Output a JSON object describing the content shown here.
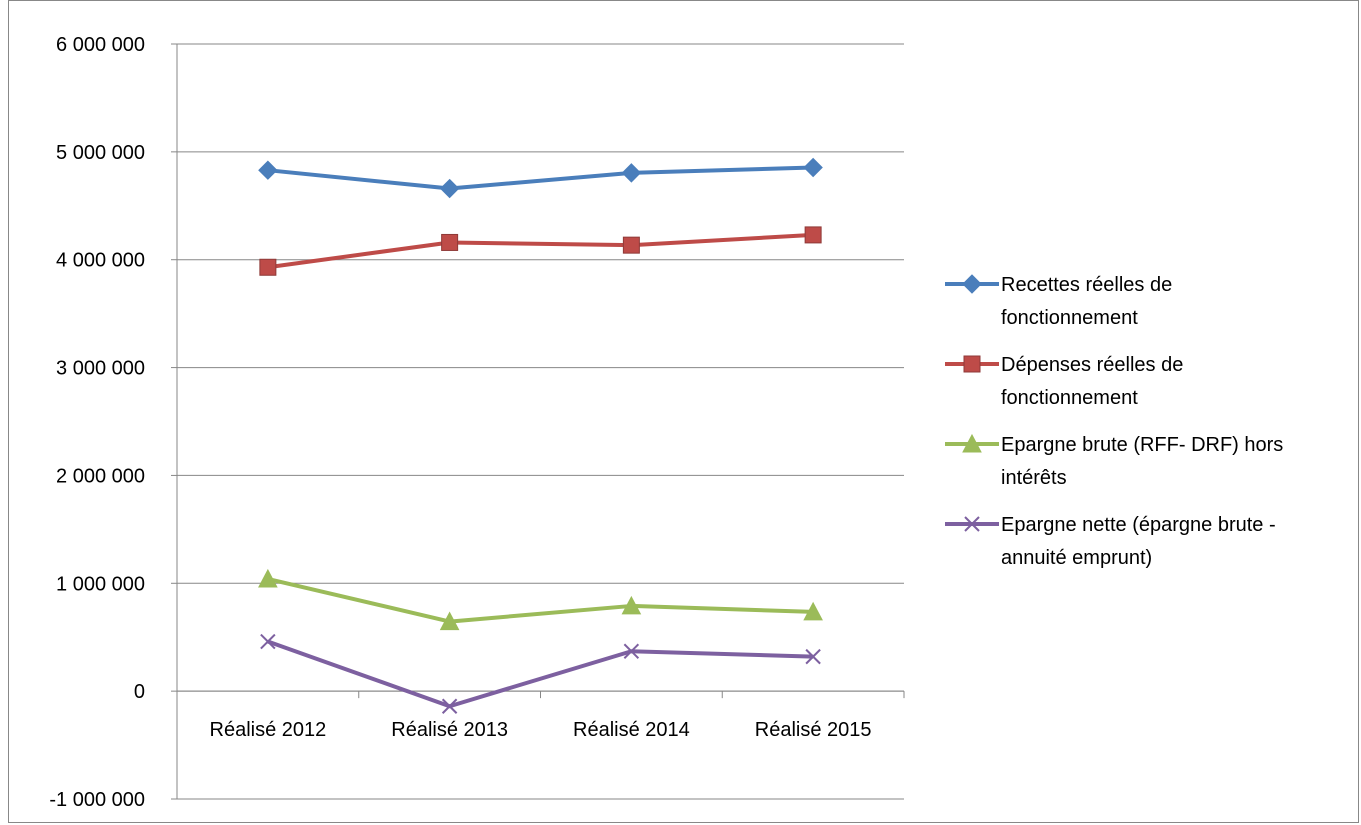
{
  "chart_data": {
    "type": "line",
    "title": "",
    "xlabel": "",
    "ylabel": "",
    "categories": [
      "Réalisé 2012",
      "Réalisé 2013",
      "Réalisé 2014",
      "Réalisé 2015"
    ],
    "ylim": [
      -1000000,
      6000000
    ],
    "yticks": [
      -1000000,
      0,
      1000000,
      2000000,
      3000000,
      4000000,
      5000000,
      6000000
    ],
    "ytick_labels": [
      "-1 000 000",
      "0",
      "1 000 000",
      "2 000 000",
      "3 000 000",
      "4 000 000",
      "5 000 000",
      "6 000 000"
    ],
    "grid": "horizontal",
    "legend_position": "right",
    "series": [
      {
        "name_lines": [
          "Recettes réelles de",
          "fonctionnement"
        ],
        "name": "Recettes réelles de fonctionnement",
        "color": "#4A7EBB",
        "marker": "diamond",
        "values": [
          4830000,
          4660000,
          4805000,
          4855000
        ]
      },
      {
        "name_lines": [
          "Dépenses réelles de",
          "fonctionnement"
        ],
        "name": "Dépenses réelles de fonctionnement",
        "color": "#BE4B48",
        "marker": "square",
        "values": [
          3930000,
          4160000,
          4135000,
          4230000
        ]
      },
      {
        "name_lines": [
          "Epargne brute (RFF- DRF) hors",
          "intérêts"
        ],
        "name": "Epargne brute (RFF- DRF) hors intérêts",
        "color": "#9BBB59",
        "marker": "triangle",
        "values": [
          1040000,
          645000,
          790000,
          735000
        ]
      },
      {
        "name_lines": [
          "Epargne nette (épargne brute -",
          "annuité emprunt)"
        ],
        "name": "Epargne nette (épargne brute - annuité emprunt)",
        "color": "#7D60A0",
        "marker": "x",
        "values": [
          460000,
          -140000,
          370000,
          320000
        ]
      }
    ]
  }
}
